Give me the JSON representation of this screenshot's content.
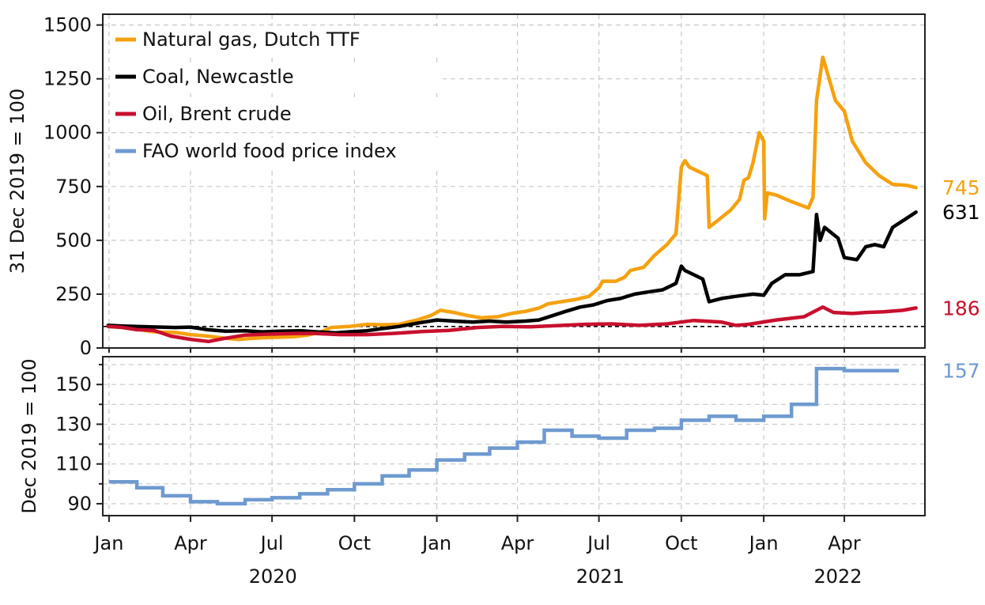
{
  "chart_data": [
    {
      "type": "line",
      "ylabel": "31 Dec 2019 = 100",
      "ylim": [
        0,
        1550
      ],
      "yticks": [
        0,
        250,
        500,
        750,
        1000,
        1250,
        1500
      ],
      "grid": true,
      "legend_position": "top-left",
      "reference_line": 100,
      "series": [
        {
          "name": "Natural gas, Dutch TTF",
          "color": "#F5A10F",
          "end_label": "745",
          "points": [
            [
              "2019-12-31",
              100
            ],
            [
              "2020-01-15",
              95
            ],
            [
              "2020-02-01",
              88
            ],
            [
              "2020-02-20",
              75
            ],
            [
              "2020-03-15",
              72
            ],
            [
              "2020-04-01",
              62
            ],
            [
              "2020-04-20",
              55
            ],
            [
              "2020-05-10",
              45
            ],
            [
              "2020-05-25",
              40
            ],
            [
              "2020-06-10",
              45
            ],
            [
              "2020-06-25",
              48
            ],
            [
              "2020-07-10",
              50
            ],
            [
              "2020-07-25",
              52
            ],
            [
              "2020-08-10",
              60
            ],
            [
              "2020-08-25",
              75
            ],
            [
              "2020-09-05",
              95
            ],
            [
              "2020-09-25",
              100
            ],
            [
              "2020-10-15",
              110
            ],
            [
              "2020-11-01",
              108
            ],
            [
              "2020-11-20",
              110
            ],
            [
              "2020-12-10",
              130
            ],
            [
              "2020-12-25",
              150
            ],
            [
              "2021-01-05",
              175
            ],
            [
              "2021-01-20",
              165
            ],
            [
              "2021-02-05",
              150
            ],
            [
              "2021-02-20",
              140
            ],
            [
              "2021-03-10",
              145
            ],
            [
              "2021-03-25",
              160
            ],
            [
              "2021-04-10",
              170
            ],
            [
              "2021-04-25",
              185
            ],
            [
              "2021-05-05",
              205
            ],
            [
              "2021-05-20",
              215
            ],
            [
              "2021-06-05",
              225
            ],
            [
              "2021-06-20",
              240
            ],
            [
              "2021-07-01",
              280
            ],
            [
              "2021-07-05",
              310
            ],
            [
              "2021-07-20",
              310
            ],
            [
              "2021-07-30",
              330
            ],
            [
              "2021-08-05",
              360
            ],
            [
              "2021-08-20",
              375
            ],
            [
              "2021-09-01",
              430
            ],
            [
              "2021-09-15",
              480
            ],
            [
              "2021-09-25",
              530
            ],
            [
              "2021-10-01",
              840
            ],
            [
              "2021-10-05",
              870
            ],
            [
              "2021-10-10",
              840
            ],
            [
              "2021-10-20",
              820
            ],
            [
              "2021-10-30",
              800
            ],
            [
              "2021-11-01",
              560
            ],
            [
              "2021-11-10",
              590
            ],
            [
              "2021-11-25",
              640
            ],
            [
              "2021-12-05",
              690
            ],
            [
              "2021-12-10",
              780
            ],
            [
              "2021-12-15",
              790
            ],
            [
              "2021-12-20",
              860
            ],
            [
              "2021-12-27",
              1000
            ],
            [
              "2022-01-01",
              960
            ],
            [
              "2022-01-02",
              600
            ],
            [
              "2022-01-05",
              720
            ],
            [
              "2022-01-15",
              710
            ],
            [
              "2022-02-01",
              680
            ],
            [
              "2022-02-20",
              650
            ],
            [
              "2022-02-25",
              700
            ],
            [
              "2022-03-01",
              1150
            ],
            [
              "2022-03-08",
              1350
            ],
            [
              "2022-03-15",
              1250
            ],
            [
              "2022-03-22",
              1150
            ],
            [
              "2022-04-01",
              1100
            ],
            [
              "2022-04-10",
              960
            ],
            [
              "2022-04-25",
              860
            ],
            [
              "2022-05-10",
              800
            ],
            [
              "2022-05-25",
              760
            ],
            [
              "2022-06-10",
              755
            ],
            [
              "2022-06-20",
              745
            ]
          ]
        },
        {
          "name": "Coal, Newcastle",
          "color": "#000000",
          "end_label": "631",
          "points": [
            [
              "2019-12-31",
              105
            ],
            [
              "2020-01-15",
              102
            ],
            [
              "2020-02-15",
              98
            ],
            [
              "2020-03-15",
              95
            ],
            [
              "2020-04-01",
              97
            ],
            [
              "2020-04-20",
              85
            ],
            [
              "2020-05-10",
              78
            ],
            [
              "2020-06-01",
              80
            ],
            [
              "2020-06-20",
              75
            ],
            [
              "2020-07-10",
              78
            ],
            [
              "2020-08-01",
              80
            ],
            [
              "2020-08-20",
              75
            ],
            [
              "2020-09-10",
              70
            ],
            [
              "2020-09-25",
              75
            ],
            [
              "2020-10-15",
              80
            ],
            [
              "2020-11-01",
              90
            ],
            [
              "2020-11-20",
              100
            ],
            [
              "2020-12-10",
              115
            ],
            [
              "2021-01-01",
              130
            ],
            [
              "2021-01-20",
              125
            ],
            [
              "2021-02-10",
              120
            ],
            [
              "2021-03-01",
              125
            ],
            [
              "2021-03-20",
              120
            ],
            [
              "2021-04-10",
              125
            ],
            [
              "2021-04-25",
              130
            ],
            [
              "2021-05-10",
              150
            ],
            [
              "2021-05-25",
              170
            ],
            [
              "2021-06-10",
              190
            ],
            [
              "2021-06-25",
              200
            ],
            [
              "2021-07-10",
              220
            ],
            [
              "2021-07-25",
              230
            ],
            [
              "2021-08-10",
              250
            ],
            [
              "2021-08-25",
              260
            ],
            [
              "2021-09-10",
              270
            ],
            [
              "2021-09-25",
              300
            ],
            [
              "2021-10-01",
              380
            ],
            [
              "2021-10-05",
              360
            ],
            [
              "2021-10-15",
              340
            ],
            [
              "2021-10-25",
              320
            ],
            [
              "2021-11-01",
              215
            ],
            [
              "2021-11-15",
              230
            ],
            [
              "2021-12-01",
              240
            ],
            [
              "2021-12-20",
              250
            ],
            [
              "2022-01-01",
              245
            ],
            [
              "2022-01-10",
              300
            ],
            [
              "2022-01-25",
              340
            ],
            [
              "2022-02-10",
              340
            ],
            [
              "2022-02-25",
              355
            ],
            [
              "2022-03-01",
              620
            ],
            [
              "2022-03-05",
              500
            ],
            [
              "2022-03-10",
              560
            ],
            [
              "2022-03-25",
              510
            ],
            [
              "2022-04-01",
              420
            ],
            [
              "2022-04-15",
              410
            ],
            [
              "2022-04-25",
              470
            ],
            [
              "2022-05-05",
              480
            ],
            [
              "2022-05-15",
              470
            ],
            [
              "2022-05-25",
              560
            ],
            [
              "2022-06-05",
              590
            ],
            [
              "2022-06-20",
              631
            ]
          ]
        },
        {
          "name": "Oil, Brent crude",
          "color": "#C8102E",
          "end_label": "186",
          "points": [
            [
              "2019-12-31",
              100
            ],
            [
              "2020-01-15",
              96
            ],
            [
              "2020-02-01",
              85
            ],
            [
              "2020-02-20",
              82
            ],
            [
              "2020-03-10",
              55
            ],
            [
              "2020-04-01",
              40
            ],
            [
              "2020-04-21",
              30
            ],
            [
              "2020-05-10",
              45
            ],
            [
              "2020-06-01",
              60
            ],
            [
              "2020-06-20",
              63
            ],
            [
              "2020-07-15",
              66
            ],
            [
              "2020-08-15",
              68
            ],
            [
              "2020-09-15",
              62
            ],
            [
              "2020-10-15",
              62
            ],
            [
              "2020-11-15",
              68
            ],
            [
              "2020-12-15",
              76
            ],
            [
              "2021-01-15",
              82
            ],
            [
              "2021-02-15",
              95
            ],
            [
              "2021-03-15",
              100
            ],
            [
              "2021-04-15",
              98
            ],
            [
              "2021-05-15",
              104
            ],
            [
              "2021-06-15",
              110
            ],
            [
              "2021-07-15",
              112
            ],
            [
              "2021-08-15",
              105
            ],
            [
              "2021-09-15",
              112
            ],
            [
              "2021-10-15",
              128
            ],
            [
              "2021-11-15",
              120
            ],
            [
              "2021-12-01",
              105
            ],
            [
              "2021-12-15",
              110
            ],
            [
              "2022-01-15",
              130
            ],
            [
              "2022-02-15",
              145
            ],
            [
              "2022-03-08",
              190
            ],
            [
              "2022-03-20",
              165
            ],
            [
              "2022-04-10",
              160
            ],
            [
              "2022-04-25",
              165
            ],
            [
              "2022-05-15",
              168
            ],
            [
              "2022-06-05",
              175
            ],
            [
              "2022-06-20",
              186
            ]
          ]
        }
      ]
    },
    {
      "type": "line",
      "step": true,
      "ylabel": "Dec 2019 = 100",
      "ylim": [
        84,
        164
      ],
      "yticks": [
        90,
        110,
        130,
        150
      ],
      "minor_yticks": [
        100,
        120,
        140,
        160
      ],
      "grid": true,
      "series": [
        {
          "name": "FAO world food price index",
          "color": "#6E9AD0",
          "end_label": "157",
          "points": [
            [
              "2020-01",
              101
            ],
            [
              "2020-02",
              98
            ],
            [
              "2020-03",
              94
            ],
            [
              "2020-04",
              91
            ],
            [
              "2020-05",
              90
            ],
            [
              "2020-06",
              92
            ],
            [
              "2020-07",
              93
            ],
            [
              "2020-08",
              95
            ],
            [
              "2020-09",
              97
            ],
            [
              "2020-10",
              100
            ],
            [
              "2020-11",
              104
            ],
            [
              "2020-12",
              107
            ],
            [
              "2021-01",
              112
            ],
            [
              "2021-02",
              115
            ],
            [
              "2021-03",
              118
            ],
            [
              "2021-04",
              121
            ],
            [
              "2021-05",
              127
            ],
            [
              "2021-06",
              124
            ],
            [
              "2021-07",
              123
            ],
            [
              "2021-08",
              127
            ],
            [
              "2021-09",
              128
            ],
            [
              "2021-10",
              132
            ],
            [
              "2021-11",
              134
            ],
            [
              "2021-12",
              132
            ],
            [
              "2022-01",
              134
            ],
            [
              "2022-02",
              140
            ],
            [
              "2022-03",
              158
            ],
            [
              "2022-04",
              157
            ],
            [
              "2022-05",
              157
            ]
          ]
        }
      ]
    }
  ],
  "x_axis": {
    "month_ticks": [
      {
        "label": "Jan",
        "date": "2020-01-01"
      },
      {
        "label": "Apr",
        "date": "2020-04-01"
      },
      {
        "label": "Jul",
        "date": "2020-07-01"
      },
      {
        "label": "Oct",
        "date": "2020-10-01"
      },
      {
        "label": "Jan",
        "date": "2021-01-01"
      },
      {
        "label": "Apr",
        "date": "2021-04-01"
      },
      {
        "label": "Jul",
        "date": "2021-07-01"
      },
      {
        "label": "Oct",
        "date": "2021-10-01"
      },
      {
        "label": "Jan",
        "date": "2022-01-01"
      },
      {
        "label": "Apr",
        "date": "2022-04-01"
      }
    ],
    "years": [
      "2020",
      "2021",
      "2022"
    ],
    "xlim": [
      "2019-12-25",
      "2022-06-30"
    ]
  }
}
